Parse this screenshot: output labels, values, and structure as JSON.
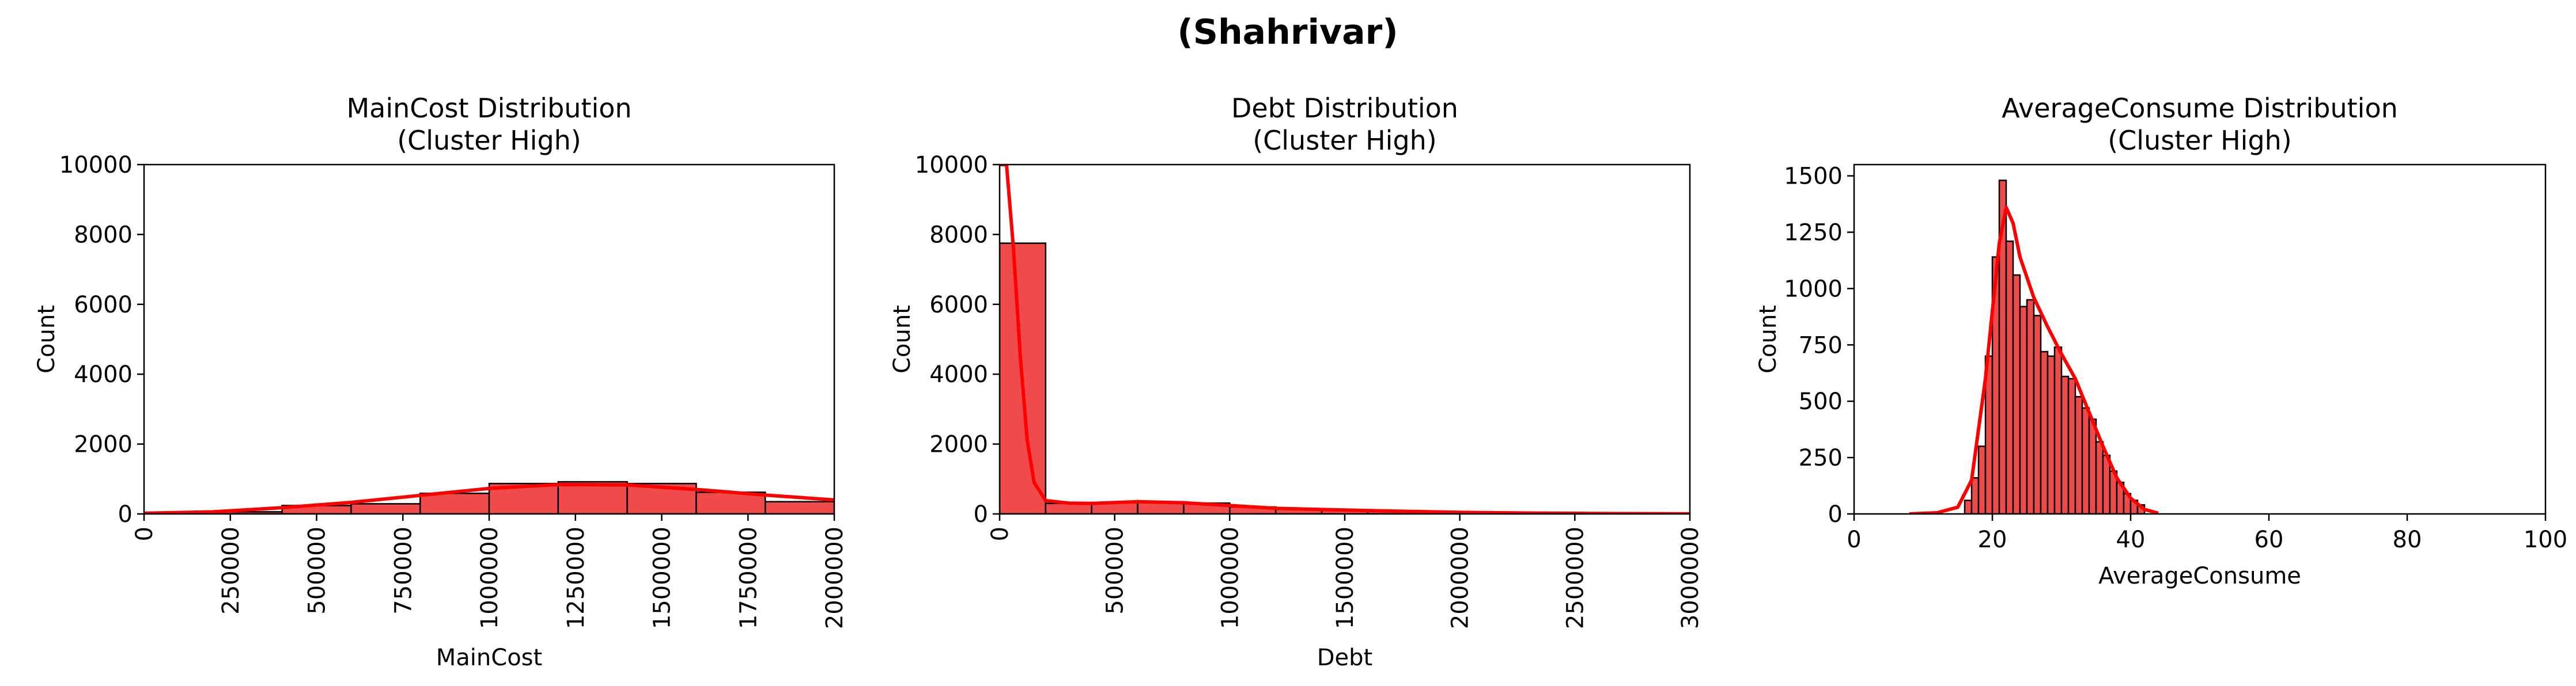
{
  "suptitle": "(Shahrivar)",
  "chart_data": [
    {
      "type": "histogram",
      "title": "MainCost Distribution\n(Cluster High)",
      "xlabel": "MainCost",
      "ylabel": "Count",
      "xlim": [
        0,
        2000000
      ],
      "ylim": [
        0,
        10000
      ],
      "xticks": [
        "0",
        "250000",
        "500000",
        "750000",
        "1000000",
        "1250000",
        "1500000",
        "1750000",
        "2000000"
      ],
      "xtick_values": [
        0,
        250000,
        500000,
        750000,
        1000000,
        1250000,
        1500000,
        1750000,
        2000000
      ],
      "xtick_rotation": 90,
      "yticks": [
        "0",
        "2000",
        "4000",
        "6000",
        "8000",
        "10000"
      ],
      "ytick_values": [
        0,
        2000,
        4000,
        6000,
        8000,
        10000
      ],
      "color": "#ff0000",
      "bar_color": "#f04b4b",
      "bins": [
        {
          "x0": 0,
          "x1": 200000,
          "count": 20
        },
        {
          "x0": 200000,
          "x1": 400000,
          "count": 60
        },
        {
          "x0": 400000,
          "x1": 600000,
          "count": 240
        },
        {
          "x0": 600000,
          "x1": 800000,
          "count": 290
        },
        {
          "x0": 800000,
          "x1": 1000000,
          "count": 590
        },
        {
          "x0": 1000000,
          "x1": 1200000,
          "count": 870
        },
        {
          "x0": 1200000,
          "x1": 1400000,
          "count": 920
        },
        {
          "x0": 1400000,
          "x1": 1600000,
          "count": 870
        },
        {
          "x0": 1600000,
          "x1": 1800000,
          "count": 620
        },
        {
          "x0": 1800000,
          "x1": 2000000,
          "count": 350
        }
      ],
      "kde": [
        [
          0,
          20
        ],
        [
          200000,
          60
        ],
        [
          400000,
          180
        ],
        [
          600000,
          330
        ],
        [
          800000,
          530
        ],
        [
          1000000,
          730
        ],
        [
          1200000,
          840
        ],
        [
          1400000,
          830
        ],
        [
          1600000,
          700
        ],
        [
          1800000,
          540
        ],
        [
          2000000,
          400
        ]
      ]
    },
    {
      "type": "histogram",
      "title": "Debt Distribution\n(Cluster High)",
      "xlabel": "Debt",
      "ylabel": "Count",
      "xlim": [
        0,
        3000000
      ],
      "ylim": [
        0,
        10000
      ],
      "xticks": [
        "0",
        "500000",
        "1000000",
        "1500000",
        "2000000",
        "2500000",
        "3000000"
      ],
      "xtick_values": [
        0,
        500000,
        1000000,
        1500000,
        2000000,
        2500000,
        3000000
      ],
      "xtick_rotation": 90,
      "yticks": [
        "0",
        "2000",
        "4000",
        "6000",
        "8000",
        "10000"
      ],
      "ytick_values": [
        0,
        2000,
        4000,
        6000,
        8000,
        10000
      ],
      "color": "#ff0000",
      "bar_color": "#f04b4b",
      "bins": [
        {
          "x0": 0,
          "x1": 200000,
          "count": 7750
        },
        {
          "x0": 200000,
          "x1": 400000,
          "count": 300
        },
        {
          "x0": 400000,
          "x1": 600000,
          "count": 330
        },
        {
          "x0": 600000,
          "x1": 800000,
          "count": 350
        },
        {
          "x0": 800000,
          "x1": 1000000,
          "count": 310
        },
        {
          "x0": 1000000,
          "x1": 1200000,
          "count": 200
        },
        {
          "x0": 1200000,
          "x1": 1400000,
          "count": 130
        },
        {
          "x0": 1400000,
          "x1": 1600000,
          "count": 100
        },
        {
          "x0": 1600000,
          "x1": 1800000,
          "count": 70
        },
        {
          "x0": 1800000,
          "x1": 2000000,
          "count": 50
        },
        {
          "x0": 2000000,
          "x1": 2200000,
          "count": 30
        },
        {
          "x0": 2200000,
          "x1": 2400000,
          "count": 20
        },
        {
          "x0": 2400000,
          "x1": 2600000,
          "count": 15
        },
        {
          "x0": 2600000,
          "x1": 2800000,
          "count": 8
        },
        {
          "x0": 2800000,
          "x1": 3000000,
          "count": 5
        }
      ],
      "kde": [
        [
          0,
          10000
        ],
        [
          30000,
          10000
        ],
        [
          60000,
          7600
        ],
        [
          90000,
          4500
        ],
        [
          120000,
          2100
        ],
        [
          150000,
          900
        ],
        [
          200000,
          380
        ],
        [
          300000,
          310
        ],
        [
          400000,
          300
        ],
        [
          600000,
          350
        ],
        [
          800000,
          320
        ],
        [
          1000000,
          240
        ],
        [
          1200000,
          160
        ],
        [
          1500000,
          110
        ],
        [
          1800000,
          70
        ],
        [
          2000000,
          45
        ],
        [
          2300000,
          25
        ],
        [
          2600000,
          12
        ],
        [
          3000000,
          4
        ]
      ]
    },
    {
      "type": "histogram",
      "title": "AverageConsume Distribution\n(Cluster High)",
      "xlabel": "AverageConsume",
      "ylabel": "Count",
      "xlim": [
        0,
        100
      ],
      "ylim": [
        0,
        1550
      ],
      "xticks": [
        "0",
        "20",
        "40",
        "60",
        "80",
        "100"
      ],
      "xtick_values": [
        0,
        20,
        40,
        60,
        80,
        100
      ],
      "xtick_rotation": 0,
      "yticks": [
        "0",
        "250",
        "500",
        "750",
        "1000",
        "1250",
        "1500"
      ],
      "ytick_values": [
        0,
        250,
        500,
        750,
        1000,
        1250,
        1500
      ],
      "color": "#ff0000",
      "bar_color": "#f04b4b",
      "bins": [
        {
          "x0": 16,
          "x1": 17,
          "count": 60
        },
        {
          "x0": 17,
          "x1": 18,
          "count": 160
        },
        {
          "x0": 18,
          "x1": 19,
          "count": 300
        },
        {
          "x0": 19,
          "x1": 20,
          "count": 700
        },
        {
          "x0": 20,
          "x1": 21,
          "count": 1140
        },
        {
          "x0": 21,
          "x1": 22,
          "count": 1480
        },
        {
          "x0": 22,
          "x1": 23,
          "count": 1210
        },
        {
          "x0": 23,
          "x1": 24,
          "count": 1060
        },
        {
          "x0": 24,
          "x1": 25,
          "count": 920
        },
        {
          "x0": 25,
          "x1": 26,
          "count": 950
        },
        {
          "x0": 26,
          "x1": 27,
          "count": 880
        },
        {
          "x0": 27,
          "x1": 28,
          "count": 720
        },
        {
          "x0": 28,
          "x1": 29,
          "count": 700
        },
        {
          "x0": 29,
          "x1": 30,
          "count": 740
        },
        {
          "x0": 30,
          "x1": 31,
          "count": 610
        },
        {
          "x0": 31,
          "x1": 32,
          "count": 600
        },
        {
          "x0": 32,
          "x1": 33,
          "count": 520
        },
        {
          "x0": 33,
          "x1": 34,
          "count": 470
        },
        {
          "x0": 34,
          "x1": 35,
          "count": 420
        },
        {
          "x0": 35,
          "x1": 36,
          "count": 320
        },
        {
          "x0": 36,
          "x1": 37,
          "count": 260
        },
        {
          "x0": 37,
          "x1": 38,
          "count": 190
        },
        {
          "x0": 38,
          "x1": 39,
          "count": 140
        },
        {
          "x0": 39,
          "x1": 40,
          "count": 90
        },
        {
          "x0": 40,
          "x1": 41,
          "count": 60
        },
        {
          "x0": 41,
          "x1": 42,
          "count": 40
        }
      ],
      "kde": [
        [
          8,
          0
        ],
        [
          12,
          5
        ],
        [
          15,
          30
        ],
        [
          17,
          150
        ],
        [
          19,
          600
        ],
        [
          21,
          1200
        ],
        [
          22,
          1360
        ],
        [
          23,
          1290
        ],
        [
          24,
          1140
        ],
        [
          26,
          960
        ],
        [
          28,
          830
        ],
        [
          30,
          710
        ],
        [
          32,
          600
        ],
        [
          34,
          450
        ],
        [
          36,
          300
        ],
        [
          38,
          160
        ],
        [
          40,
          70
        ],
        [
          42,
          20
        ],
        [
          44,
          3
        ]
      ]
    }
  ]
}
